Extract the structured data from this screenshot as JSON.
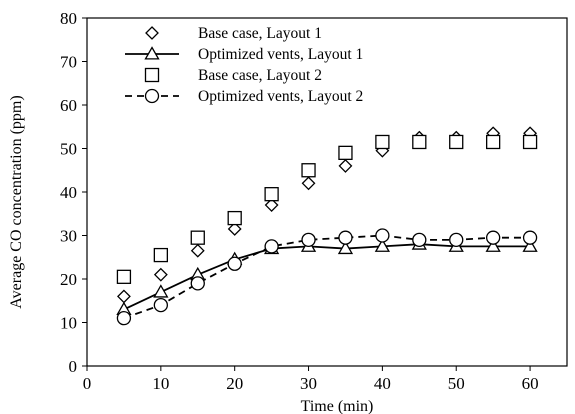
{
  "chart_data": {
    "type": "line",
    "xlabel": "Time (min)",
    "ylabel": "Average CO concentration (ppm)",
    "xlim": [
      0,
      65
    ],
    "ylim": [
      0,
      80
    ],
    "x_ticks": [
      "0",
      "10",
      "20",
      "30",
      "40",
      "50",
      "60"
    ],
    "y_ticks": [
      "0",
      "10",
      "20",
      "30",
      "40",
      "50",
      "60",
      "70",
      "80"
    ],
    "grid": false,
    "legend_position": "top-left",
    "series": [
      {
        "name": "Base case, Layout 1",
        "marker": "diamond",
        "line": "none",
        "x": [
          5,
          10,
          15,
          20,
          25,
          30,
          35,
          40,
          45,
          50,
          55,
          60
        ],
        "y": [
          16,
          21,
          26.5,
          31.5,
          37,
          42,
          46,
          49.5,
          52.5,
          52.5,
          53.5,
          53.5
        ]
      },
      {
        "name": "Optimized vents, Layout 1",
        "marker": "triangle",
        "line": "solid",
        "x": [
          5,
          10,
          15,
          20,
          25,
          30,
          35,
          40,
          45,
          50,
          55,
          60
        ],
        "y": [
          13,
          17,
          21,
          24.5,
          27,
          27.5,
          27,
          27.5,
          28,
          27.5,
          27.5,
          27.5
        ]
      },
      {
        "name": "Base case, Layout 2",
        "marker": "square",
        "line": "none",
        "x": [
          5,
          10,
          15,
          20,
          25,
          30,
          35,
          40,
          45,
          50,
          55,
          60
        ],
        "y": [
          20.5,
          25.5,
          29.5,
          34,
          39.5,
          45,
          49,
          51.5,
          51.5,
          51.5,
          51.5,
          51.5
        ]
      },
      {
        "name": "Optimized vents, Layout 2",
        "marker": "circle",
        "line": "dashed",
        "x": [
          5,
          10,
          15,
          20,
          25,
          30,
          35,
          40,
          45,
          50,
          55,
          60
        ],
        "y": [
          11,
          14,
          19,
          23.5,
          27.5,
          29,
          29.5,
          30,
          29,
          29,
          29.5,
          29.5
        ]
      }
    ]
  }
}
